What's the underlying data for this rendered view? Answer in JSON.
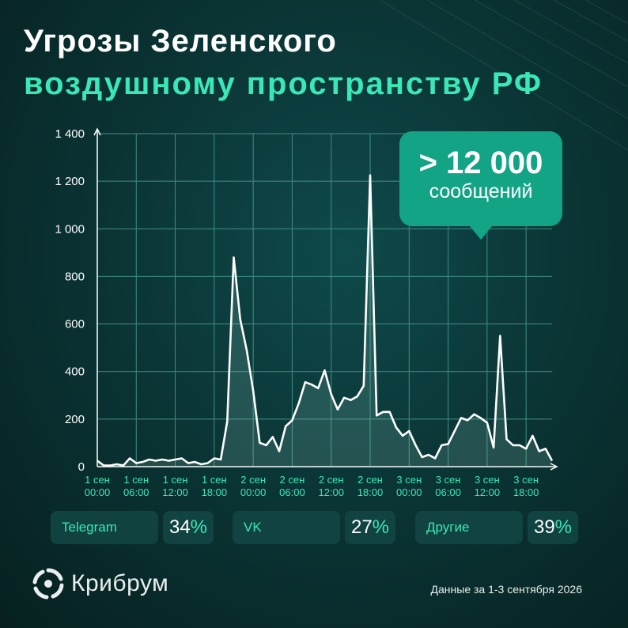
{
  "title": {
    "line1": "Угрозы Зеленского",
    "line2": "воздушному пространству РФ"
  },
  "callout": {
    "value": "> 12 000",
    "label": "сообщений"
  },
  "sources": [
    {
      "name": "Telegram",
      "value": "34",
      "unit": "%"
    },
    {
      "name": "VK",
      "value": "27",
      "unit": "%"
    },
    {
      "name": "Другие",
      "value": "39",
      "unit": "%"
    }
  ],
  "brand": {
    "logo_icon": "kribrum-swirl-icon",
    "name": "Крибрум"
  },
  "footer": "Данные за 1-3 сентября 2026",
  "colors": {
    "accent": "#39e8b6",
    "callout": "#13a486",
    "line": "#ffffff",
    "grid": "#3f8f86"
  },
  "chart_data": {
    "type": "area",
    "title": "",
    "xlabel": "",
    "ylabel": "",
    "ylim": [
      0,
      1400
    ],
    "yticks": [
      0,
      200,
      400,
      600,
      800,
      1000,
      1200,
      1400
    ],
    "ytick_labels": [
      "0",
      "200",
      "400",
      "600",
      "800",
      "1 000",
      "1 200",
      "1 400"
    ],
    "x_tick_labels": [
      [
        "1 сен",
        "00:00"
      ],
      [
        "1 сен",
        "06:00"
      ],
      [
        "1 сен",
        "12:00"
      ],
      [
        "1 сен",
        "18:00"
      ],
      [
        "2 сен",
        "00:00"
      ],
      [
        "2 сен",
        "06:00"
      ],
      [
        "2 сен",
        "12:00"
      ],
      [
        "2 сен",
        "18:00"
      ],
      [
        "3 сен",
        "00:00"
      ],
      [
        "3 сен",
        "06:00"
      ],
      [
        "3 сен",
        "12:00"
      ],
      [
        "3 сен",
        "18:00"
      ]
    ],
    "x_unit": "hours since 1 сен 00:00",
    "grid": true,
    "series": [
      {
        "values": [
          [
            0,
            25
          ],
          [
            1,
            5
          ],
          [
            2,
            5
          ],
          [
            3,
            10
          ],
          [
            4,
            5
          ],
          [
            5,
            35
          ],
          [
            6,
            15
          ],
          [
            7,
            20
          ],
          [
            8,
            30
          ],
          [
            9,
            25
          ],
          [
            10,
            30
          ],
          [
            11,
            25
          ],
          [
            12,
            30
          ],
          [
            13,
            35
          ],
          [
            14,
            15
          ],
          [
            15,
            20
          ],
          [
            16,
            10
          ],
          [
            17,
            15
          ],
          [
            18,
            35
          ],
          [
            19,
            30
          ],
          [
            20,
            190
          ],
          [
            21,
            880
          ],
          [
            22,
            620
          ],
          [
            23,
            490
          ],
          [
            24,
            320
          ],
          [
            25,
            100
          ],
          [
            26,
            90
          ],
          [
            27,
            125
          ],
          [
            28,
            65
          ],
          [
            29,
            170
          ],
          [
            30,
            195
          ],
          [
            31,
            265
          ],
          [
            32,
            355
          ],
          [
            33,
            345
          ],
          [
            34,
            330
          ],
          [
            35,
            405
          ],
          [
            36,
            305
          ],
          [
            37,
            240
          ],
          [
            38,
            290
          ],
          [
            39,
            280
          ],
          [
            40,
            295
          ],
          [
            41,
            340
          ],
          [
            42,
            1225
          ],
          [
            43,
            215
          ],
          [
            44,
            230
          ],
          [
            45,
            230
          ],
          [
            46,
            165
          ],
          [
            47,
            130
          ],
          [
            48,
            150
          ],
          [
            49,
            90
          ],
          [
            50,
            40
          ],
          [
            51,
            50
          ],
          [
            52,
            35
          ],
          [
            53,
            90
          ],
          [
            54,
            95
          ],
          [
            55,
            150
          ],
          [
            56,
            205
          ],
          [
            57,
            195
          ],
          [
            58,
            220
          ],
          [
            59,
            205
          ],
          [
            60,
            185
          ],
          [
            61,
            80
          ],
          [
            62,
            550
          ],
          [
            63,
            115
          ],
          [
            64,
            90
          ],
          [
            65,
            90
          ],
          [
            66,
            75
          ],
          [
            67,
            130
          ],
          [
            68,
            65
          ],
          [
            69,
            75
          ],
          [
            70,
            25
          ]
        ]
      }
    ]
  }
}
